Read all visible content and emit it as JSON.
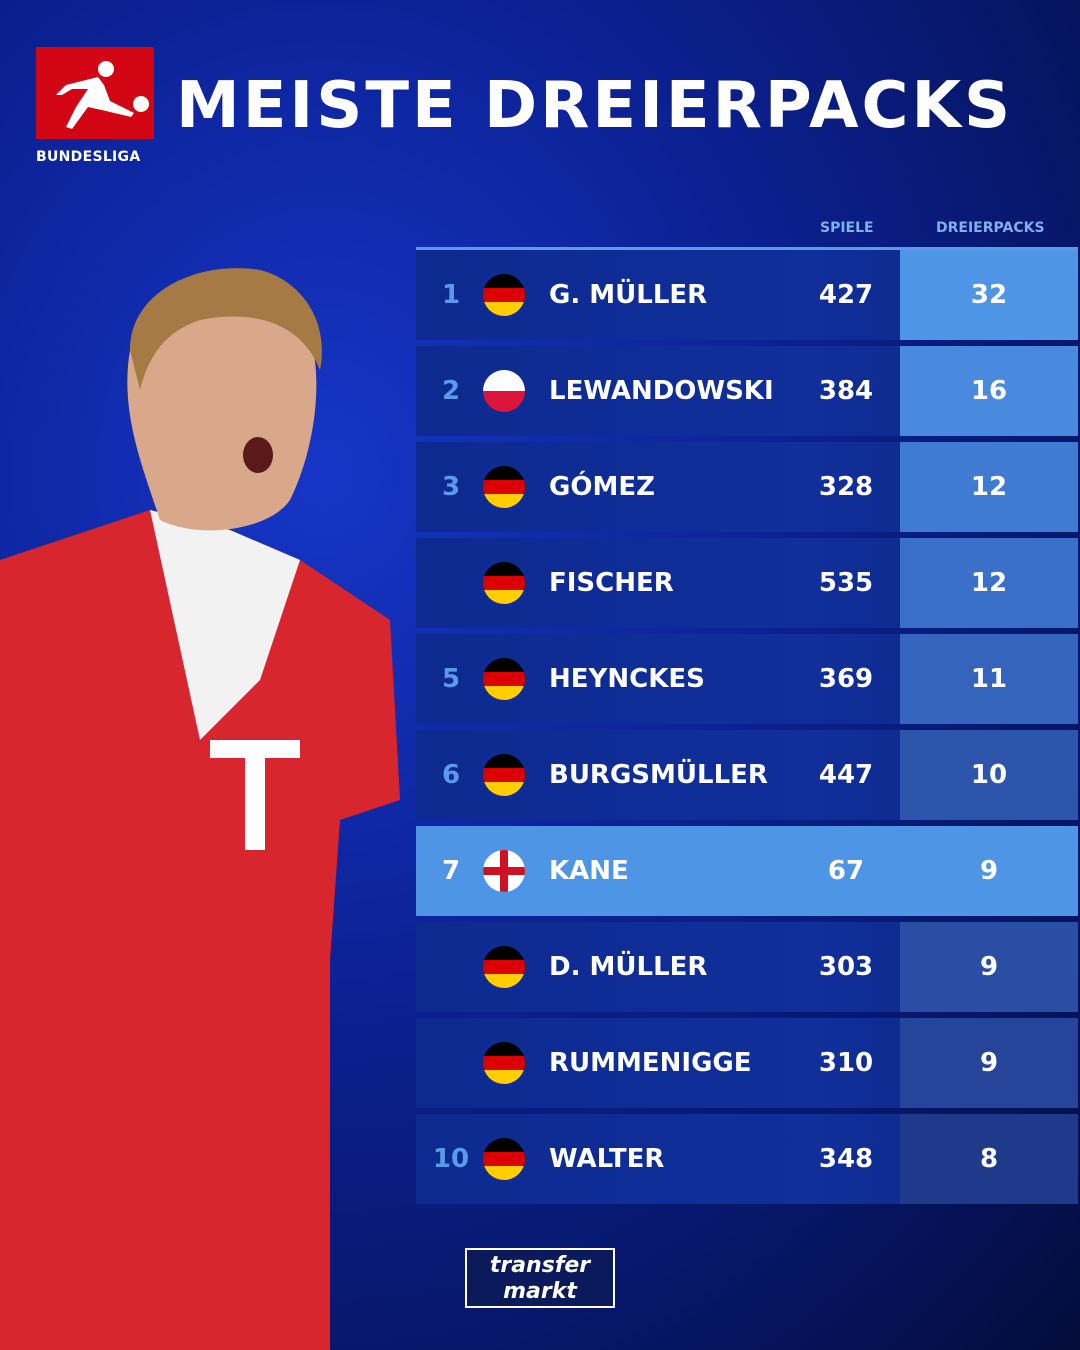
{
  "brand": {
    "league": "BUNDESLIGA",
    "source": "transfermarkt",
    "source_line1": "transfer",
    "source_line2": "markt"
  },
  "title": "MEISTE DREIERPACKS",
  "columns": {
    "games": "SPIELE",
    "hattricks": "DREIERPACKS"
  },
  "highlight_color": "#4f95e6",
  "rows": [
    {
      "rank": "1",
      "flag": "germany-flag-icon",
      "name": "G. MÜLLER",
      "games": "427",
      "hattricks": "32"
    },
    {
      "rank": "2",
      "flag": "poland-flag-icon",
      "name": "LEWANDOWSKI",
      "games": "384",
      "hattricks": "16"
    },
    {
      "rank": "3",
      "flag": "germany-flag-icon",
      "name": "GÓMEZ",
      "games": "328",
      "hattricks": "12"
    },
    {
      "rank": "",
      "flag": "germany-flag-icon",
      "name": "FISCHER",
      "games": "535",
      "hattricks": "12"
    },
    {
      "rank": "5",
      "flag": "germany-flag-icon",
      "name": "HEYNCKES",
      "games": "369",
      "hattricks": "11"
    },
    {
      "rank": "6",
      "flag": "germany-flag-icon",
      "name": "BURGSMÜLLER",
      "games": "447",
      "hattricks": "10"
    },
    {
      "rank": "7",
      "flag": "england-flag-icon",
      "name": "KANE",
      "games": "67",
      "hattricks": "9"
    },
    {
      "rank": "",
      "flag": "germany-flag-icon",
      "name": "D. MÜLLER",
      "games": "303",
      "hattricks": "9"
    },
    {
      "rank": "",
      "flag": "germany-flag-icon",
      "name": "RUMMENIGGE",
      "games": "310",
      "hattricks": "9"
    },
    {
      "rank": "10",
      "flag": "germany-flag-icon",
      "name": "WALTER",
      "games": "348",
      "hattricks": "8"
    }
  ]
}
